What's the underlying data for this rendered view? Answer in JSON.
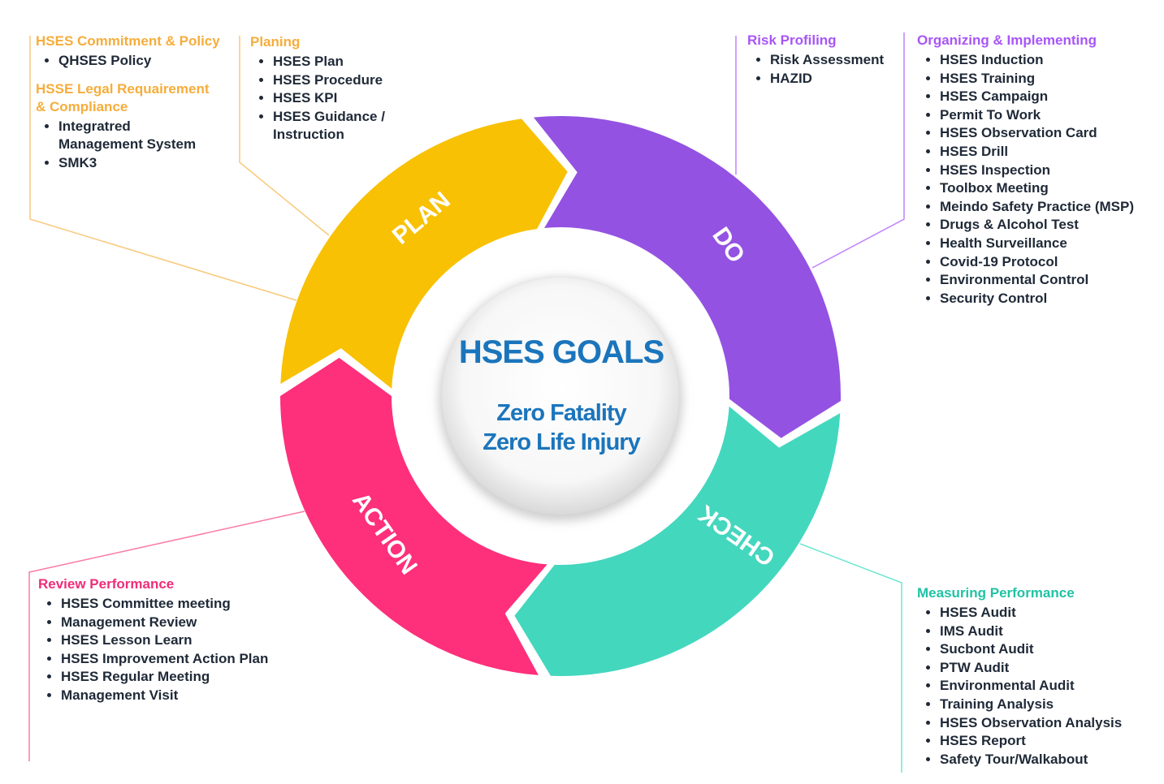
{
  "colors": {
    "plan": "#f8c103",
    "do": "#9452e2",
    "check": "#43d7be",
    "action": "#fe2f7b",
    "plan_heading": "#f6ad3b",
    "do_heading": "#a855f7",
    "check_heading": "#20c3a4",
    "action_heading": "#ef2d79",
    "goal": "#1b75bc"
  },
  "cycle": {
    "segments": [
      "PLAN",
      "DO",
      "CHECK",
      "ACTION"
    ]
  },
  "center": {
    "title": "HSES GOALS",
    "line1": "Zero Fatality",
    "line2": "Zero Life Injury"
  },
  "plan_left": {
    "heading1": "HSES Commitment & Policy",
    "items1": [
      "QHSES Policy"
    ],
    "heading2_line1": "HSSE Legal Requairement",
    "heading2_line2": "& Compliance",
    "items2": [
      "Integratred",
      "Management System",
      "SMK3"
    ]
  },
  "plan_right": {
    "heading": "Planing",
    "items": [
      "HSES Plan",
      "HSES Procedure",
      "HSES KPI",
      "HSES Guidance /",
      "Instruction"
    ]
  },
  "do_left": {
    "heading": "Risk Profiling",
    "items": [
      "Risk Assessment",
      "HAZID"
    ]
  },
  "do_right": {
    "heading": "Organizing & Implementing",
    "items": [
      "HSES Induction",
      "HSES Training",
      "HSES Campaign",
      "Permit To Work",
      "HSES Observation Card",
      "HSES Drill",
      "HSES Inspection",
      "Toolbox Meeting",
      "Meindo Safety Practice (MSP)",
      "Drugs & Alcohol Test",
      "Health Surveillance",
      "Covid-19 Protocol",
      "Environmental Control",
      "Security Control"
    ]
  },
  "check": {
    "heading": "Measuring Performance",
    "items": [
      "HSES Audit",
      "IMS Audit",
      "Sucbont Audit",
      "PTW Audit",
      "Environmental Audit",
      "Training Analysis",
      "HSES Observation Analysis",
      "HSES Report",
      "Safety Tour/Walkabout"
    ]
  },
  "action": {
    "heading": "Review Performance",
    "items": [
      "HSES Committee meeting",
      "Management Review",
      "HSES Lesson Learn",
      "HSES Improvement Action Plan",
      "HSES Regular Meeting",
      "Management Visit"
    ]
  }
}
